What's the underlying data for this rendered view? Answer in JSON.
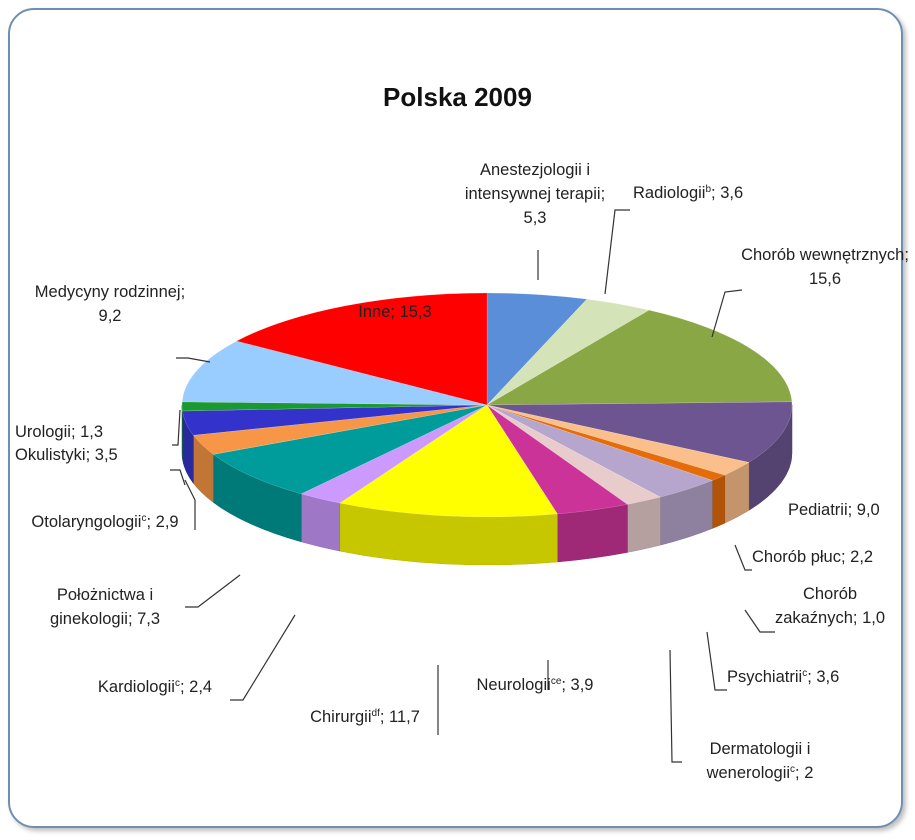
{
  "chart_data": {
    "type": "pie3d",
    "title": "Polska 2009",
    "categories": [
      "Anestezjologii i intensywnej terapii",
      "Radiologii",
      "Chorób wewnętrznych",
      "Pediatrii",
      "Chorób płuc",
      "Chorób zakaźnych",
      "Psychiatrii",
      "Dermatologii i wenerologii",
      "Neurologii",
      "Chirurgii",
      "Kardiologii",
      "Położnictwa i ginekologii",
      "Otolaryngologii",
      "Okulistyki",
      "Urologii",
      "Medycyny rodzinnej",
      "Inne"
    ],
    "superscripts": [
      null,
      "b",
      null,
      null,
      null,
      null,
      "c",
      "c",
      "ce",
      "df",
      "c",
      null,
      "c",
      null,
      null,
      null,
      null
    ],
    "label_separator": "; ",
    "values": [
      5.3,
      3.6,
      15.6,
      9.0,
      2.2,
      1.0,
      3.6,
      2,
      3.9,
      11.7,
      2.4,
      7.3,
      2.9,
      3.5,
      1.3,
      9.2,
      15.3
    ],
    "value_labels": [
      "5,3",
      "3,6",
      "15,6",
      "9,0",
      "2,2",
      "1,0",
      "3,6",
      "2",
      "3,9",
      "11,7",
      "2,4",
      "7,3",
      "2,9",
      "3,5",
      "1,3",
      "9,2",
      "15,3"
    ],
    "colors": [
      "#5a8ed8",
      "#d5e4b8",
      "#8aa745",
      "#6c5590",
      "#fbbf8c",
      "#e46c0a",
      "#b6a5cc",
      "#e8cccc",
      "#cc3399",
      "#ffff00",
      "#cc99ff",
      "#009b9b",
      "#f79646",
      "#3333cc",
      "#1a9933",
      "#99ccff",
      "#ff0000"
    ]
  }
}
